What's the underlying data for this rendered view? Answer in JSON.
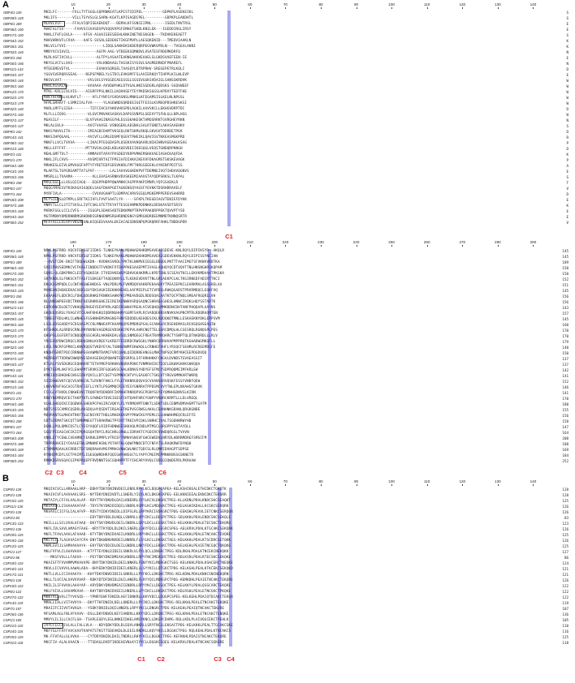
{
  "panels": [
    {
      "letter": "A",
      "blocks": [
        {
          "ruler": [
            "10",
            "20",
            "30",
            "40",
            "50",
            "60",
            "70",
            "80",
            "90",
            "100",
            "110",
            "120",
            "130",
            "140"
          ],
          "end_char": "C",
          "rows": [
            [
              "OBP4/1-145",
              "MKILFC-------FVLLTYTSGGLGQPRNKEATLKPISTCDIPEL---------GDPKPLASEKEIKL",
              "S"
            ],
            [
              "OBP28/1-145",
              "MKLIFS-------VILLTSYVSLGLSARN-KGATLKPISAGDCPEL---------GDPKPLEAKDHTL",
              "S"
            ],
            [
              "OBP5/1-189",
              "MLRVLVIF-----FFALVIQPISEAEKDQT---DEMALKFSSNCEIPNL------ISEDLTNVTRSL",
              "E"
            ],
            [
              "OBP36/1-150",
              "MAKFALFSV-----FAVVSCGVASDSPVSQQVVPGFEMHGTSKDLKNILEK---IGEDDIRGLIRSY",
              "E"
            ],
            [
              "OBP17/1-150",
              "MAKLCFVFLGVLA-----VFSV-ASAAISEESEEHLKNAINETKESKGEN---TKDVKEKEAETT",
              "S"
            ],
            [
              "OBP34/1-152",
              "MAKVHRKVFLCVVA----AAFS-SVSALSEDEKETIKGFMVPLLAESQKENID---TMEDVIAAKLN",
              "K"
            ],
            [
              "OBP26/1-151",
              "MKLVCLFVVI-----------------LIDQLSANVEKSKDERQRPEGVWKVPDLN---TVGEALAKNI",
              "K"
            ],
            [
              "OBP33/1-145",
              "MMRYVCVIAVIL------------AGFM-AAG-VTDEEKSQMHDVLVSATESFRDEMKDRFQ",
              "N"
            ],
            [
              "OBP3/1-156",
              "MLRLVGFIVCVLL-----------ALTPYLASAATEARNGAKKVEAAELSLGKDSVAEFEEN-IE",
              "E"
            ],
            [
              "OBP20/1-156",
              "MKYGLVCFLLVAS-----------VVLKNDAAGLTAGSKISYGSVLSAGMEDRKDFPNAREFL",
              "N"
            ],
            [
              "OBP11/1-143",
              "MTEEEMEVETVL------------EVAKVSQRGELTAASQYLDTRPRHV-SREGEPETRLKQLI",
              "D"
            ],
            [
              "OBP23/1-157",
              "YGGVSVERQRSSEAG----RGPSFMDELYLGTDCLEVKGMFFSLAVIERKQYTIHPPLKILWLEVP",
              "E"
            ],
            [
              "OBP29/1-145",
              "MKSVLVAT------------VVLSVLSYVGGDIAEGSSGLSSSEVGGKSVDAIGLSANSSKRDVK",
              "W"
            ],
            [
              "OBP35/1-160",
              "MARLASSALAV---------VAVAAA-AVVDWYHKLDTVGALHNISGDGRLAQDSKS-SGQVWEEF",
              "W"
            ],
            [
              "OBP12/1-170",
              "MTKL-KALLLVLVIS----AIGRFPPSLNKILLKQVHSEYTEYPKDSKSGGSLKPDVYTEDTFHE",
              "W"
            ],
            [
              "OBP22/1-170",
              "MAKYHFNKSLVLNVFLT-----VFLFYNFGYGVDASNSLMNKGLKFEGAMSISLKELNLNPGSL",
              "W"
            ],
            [
              "OBP31/1-179",
              "MFMLGMARFT-LSMRIIALFVA-----YLAGEWNDSQRDEEIGETFEIGLKSMEQPDSHKESKSI",
              "W"
            ],
            [
              "OBP32/1-140",
              "MARLLMFFLSIGA--------TIFCCHCGYAKKVHVSPDLAGKILAAVSKCLLEKHGVDRPTDC",
              "D"
            ],
            [
              "OBP27/1-150",
              "MLFLLLIQVG----------VLGVCPNVAKSASKVLDAPGSVNPSLGEEVYTSFHLGLLNPLHSG",
              "W"
            ],
            [
              "OBP37/1-137",
              "MGASILF------------GLVFVAAGINASGYHLEGSSKAKESKTAMQSRRKTGVRGHEYRKN",
              "N"
            ],
            [
              "OBP10/1-137",
              "MKLALGVLA-----------AVCFVAASE-VSNQGEKLAEGNALSALRTGNDTLAKASAAEHKV",
              "S"
            ],
            [
              "OBP9/1-142",
              "MKKSYWVVLITA--------IMIAGDCDAMTVKSEQLRKTGKMLRKQLGKVGVTDDRDETPEK",
              "D"
            ],
            [
              "OBP14/1-141",
              "MKKSIHPQGAAL--------AVCVFLLGMLEDSMFQGEVTPWEIKLQAVIGVTKKEASMGKPRD",
              "R"
            ],
            [
              "OBP38/1-152",
              "MKKFLLVCLTVVVA------LIKACPFEGGDASPLQSEKVAVHQAARLNIHIHNVAGEAHLKSAG",
              "P"
            ],
            [
              "OBP21/1-146",
              "MKLLGFFFVT---------MTTVVGVLQAELKDLKQEVDEIIKEGQGLVEQSTGNDQRPKNGH",
              "D"
            ],
            [
              "OBP2/1-141",
              "MEHLGMFTVLT---------AMMAVVTAPAYPVSDEDYKRPVMKEMSKKVAEIASHCKAQFDA",
              "K"
            ],
            [
              "OBP1/1-170",
              "MKKLIFLCAVS---------AVGMIVRTAITPPEIAFDIAKAIKEVVFDKAGMSTSKSKEVAGK",
              "P"
            ],
            [
              "OBP16/1-180",
              "MRHKESLEIVLGMVAGGFAPTYFYRETEDFGDSVKHDLFMFTHRGSEEEKLAYKENFPDITSS",
              "A"
            ],
            [
              "OBP13/1-155",
              "MLARTSLTGPGRGAMTTATLPVF-------LALIAVAVGGKDKPVFTDEMNEIVQTIHDAVQGNVS",
              "E"
            ],
            [
              "OBP15/1-156",
              "MMSRLLLTVAAMA---------VLLGVASASRNKVDVSKEEMIAAVGTAYQDPSRKSLTLKPAL",
              "S"
            ],
            [
              "OBP8/1-158",
              "MVGLGGLLLLVGLQIIAGQ---EQGPPHDPPQWAMHKCAGPPPAKPIMNPLYQFGSAEKLR",
              "T"
            ],
            [
              "OBP6/1-147",
              "MQQGYMAESVTKSKAGAIGQQELSAGFDHAPGETAGKENSQYAGSFYEVKKTDSRHDRAVELF",
              "V"
            ],
            [
              "OBP7/1-164",
              "MYRFIVLA--------------CVVAVGAHPTLGDMPACARVSGSQLMGKEMPPEREVSAHRRD",
              "D"
            ],
            [
              "OBP18/1-208",
              "MCYSILRSLDTMPLLSRFTKIIVFLFVVFSAATLYV-----SFKPLTKEGDIAGVTENIEFDYKK",
              "E"
            ],
            [
              "OBP37/1-188",
              "MNMYTLLCLSTITSVSLLIVTCSKLSTETTKYATTESGSVNMKPDDNKKLDDSKAVSDTSRIV",
              "K"
            ],
            [
              "OBP19/1-169",
              "MVRKFGGLLCCLCVFG----ISGGPLSDAKSADTEDKKMKPTRPVPPAKQRPPEKTQVVPTYSD",
              "E"
            ],
            [
              "OBP24/1-184",
              "MGTRMDNYDMDRNNRMGRHDNDSSRNHDNMSRGHRDNDSNGYGMRGKDRDEEMNMDTKNNQSRTR",
              "E"
            ],
            [
              "OBP30/1-252",
              "MFATVILLALVPFVKGAESNLKIQGEEVAAALEKIACAESDNSNPQPGRQRRFAHKLTNDDGPDR",
              "V"
            ]
          ],
          "labels": [
            {
              "text": "C1"
            }
          ]
        },
        {
          "ruler": [
            "160",
            "170",
            "180",
            "190",
            "200",
            "210",
            "220",
            "230",
            "240",
            "250",
            "260",
            "270",
            "280",
            "290"
          ],
          "end_char": "",
          "rows": [
            [
              "OBP4/1-145",
              "NPKLPGFRRD-VQCVFEKSGFIIDKS-TLNKEYKANLMQHWAEKHKDMSAVEAIGDEVE-KNLRQYLDIPIKSYD--AKQLR",
              "145"
            ],
            [
              "OBP28/1-145",
              "NPKLPGFRRD-VNCVFEKSGFIIDKS-TLNKEYKANLMQHWAEKHKDMSAVEAIGDEVEKKNLRQYLDIPISSYNCIAN",
              "145"
            ],
            [
              "OBP5/1-189",
              "--AVSTCDK-DKIFTDQGWLKDN--KVDKKSVKDLYPKTKLNKMVEIEGSLDDQDLPNTTTAACIMGTSFVKNVVRDTKA",
              "189"
            ],
            [
              "OBP36/1-150",
              "SVDIPHVSEDMKCVCFKAGFINDDGTFVKDKFVTDAPPHESAAEPMTIVASLAQHQYQCDTVQVTTNLHNSNGHRSKQPAM",
              "150"
            ],
            [
              "OBP17/1-150",
              "SQNS-QLGDKPRKCLEIFVGQKESK-ITVEDVKEWSPSDHVGKAKRMLLKPDTGNLSCSEAVTKCLLEKVKMDAAATPKGKA",
              "150"
            ],
            [
              "OBP34/1-152",
              "SKTKNDLSLFNKSCVTFAGFISEKGEFTAQEQKNYLLTLKEKEVDVKTTNLGRSAEKPCLKLTKGIRNEDFADIRTTKCI",
              "152"
            ],
            [
              "OBP26/1-151",
              "DKLKGGMPQDLCLCNFVKGWEHKDGS-VNLPDRLMLFVKMDQVVAKKPEKAAEKYTPEAIEPKCLEARKMALASSGRELAA",
              "151"
            ],
            [
              "OBP33/1-145",
              "MVNEANIHGKEEKACAEKSGVYEKSAGKIEEKHKNEAELAAFMIEPLETCVPDSLRHKQGADSTPRVRMDQCLEQKFVQ",
              "145"
            ],
            [
              "OBP3/1-156",
              "EKAAHEFLQDCRCLFDHLQDGRHKEFKNKKSAHKPKCPMEAVDGDLRDDSQACAATKTQCPTNQLSMEAFRGQRILVH",
              "156"
            ],
            [
              "OBP20/1-156",
              "NLLNNGWPEEVDCTRKKFQESRHNSGHEIEIREIKENWHVSRQGAQNCSHRADLGHESLHNWCIRQKLHQYSSTADTK",
              "156"
            ],
            [
              "OBP11/1-143",
              "EDPQRNCDLDETCVKHQAGRHGEYEEVPVRLAQDIRSWHAYREALVCVEQHQLMMKDDNCDHTANFPHQQAPLAAYNS",
              "143"
            ],
            [
              "OBP23/1-157",
              "GKQEEQSRSLYVAGCVTCEAHFKHGKQIQDRNGHHRYGGMFSAPLRCVADQEKNSVNVKVAGPNCMTRLRDQRAQMTEN",
              "157"
            ],
            [
              "OBP29/1-145",
              "TDNEGTRDLHKLCLWNHEGFGSHNHEMSMAGNSFHNYEDDDDLKEHQESCKLRDDQKDTMNLLESKAEKNYDKLERPSVM",
              "145"
            ],
            [
              "OBP35/1-160",
              "LSSLEDSGADDYSCDSAASPCCKLMNHEAPFKAAMQQPGPMDRGPGALSCANALRCRSEHEMASLRCHSQGHSEAQIW",
              "160"
            ],
            [
              "OBP12/1-170",
              "KFSHRDLALRRDSCRNLRMYNVNEVAGDRGEVDSKHCPEPVLAHRCNQTTELSGRCDMQLHLCGESRQLRGNQSPLPES",
              "170"
            ],
            [
              "OBP22/1-170",
              "QHSPSLEGFERTSCNQQQRSSCHGRLAKHEKDALVSQLSNMQEGCFREATRAMRQARCTYSNPTQLDTNADRDLLLRLV",
              "170"
            ],
            [
              "OBP31/1-179",
              "YRCEAQPDWCDRQCLRDHQGNHLKVREEYLKREFFESDRDCRWSGKLYNHRCDRRHVAPMPPRQTKGHADWGMKQFLL",
              "179"
            ],
            [
              "OBP32/1-140",
              "LRSLYNCRFGPRKCLKNVRQQSTVKDYEYALTGNNGRWMFEKWAQLLCRNHEFVHFLYRSQCFSEHMLRCREEMDGFE",
              "140"
            ],
            [
              "OBP27/1-150",
              "KNQHTGRRTPQCCRRNWPSGVAWMNTRAMCFVRCQANLQIDQRREANGSLMWCTNPSQCRMYKHCEEPDGDVQQ",
              "150"
            ],
            [
              "OBP37/1-137",
              "MERREHTTVDRWCNWQRVESDAASEEKQPQWANTEGRSRPGLSFFHRHHKKFCNGVLDVNDSTGVAEASSIT",
              "137"
            ],
            [
              "OBP10/1-137",
              "KTLRLYSVSDGRGCEQHHVRFTETHYMEPSRKKKVNQRAPDNCFVNMRHCDGTIQCLEKWVGHVKSHKQQA",
              "137"
            ],
            [
              "OBP9/1-142",
              "DYKTEEMLAKFVCLEHAPMTSRVKSIRFGQGWSSCHALKRNVGYHDYEFSFMCYSDPRQDMEIMFKRLEW",
              "142"
            ],
            [
              "OBP14/1-141",
              "KMKIVQSDHQHECWSGIDKYQVCLLDTCQGTYGPMNRCHTVYLEAGKFCTSKLVTYRGVGMMKARTWKRQ",
              "141"
            ],
            [
              "OBP38/1-152",
              "SSIDAWEVKFCQCVSARNIVLTLRVNFFHKCLYYLETKKNRGDQVASCVVANSERVQSKFESSYVNDFQEW",
              "152"
            ],
            [
              "OBP21/1-146",
              "LKKVKRVFAGCACGTRAFIEFLLYKTLPSGMMQCRIEYESYGNRRATPPDSMCVVYTWLEPLNVAHSTGKVK",
              "146"
            ],
            [
              "OBP2/1-141",
              "FCCGLVTHVDLCNKWEVVCTRQKFNYDDHDRFIKMAHFRNRQPVGCPGNYSGYEYQMHHGDNVSLKIRN",
              "141"
            ],
            [
              "OBP1/1-170",
              "RRKYNEMRQVCECTAKPTKTLSFWNEATDVEIGESFCHTQVHFHRCYGNPYVRHRCKRMTLLLDLVREQL",
              "170"
            ],
            [
              "OBP16/1-180",
              "VLHLGHEQCKCCQGDWVLSHEKPCPAGIRCVQKYLFLYVRMQVMTGNKTLSDKTSDLCENMVDMVHSMTTGATM",
              "180"
            ],
            [
              "OBP13/1-155",
              "NDTSYESCVMRCQSDRLAKSDQLHYQSDVTIRGAGEFKEPVSCRWSLAKALCDANHNKGRANLQRGKGNDE",
              "155"
            ],
            [
              "OBP15/1-156",
              "MQVRVNTGLMHCHTRKFTSGCNSYKFTHDLGMAEKEKVPYPKWCKGYPEMLCLLHHWHHMEQCRLEFFE",
              "156"
            ],
            [
              "OBP8/1-158",
              "GDTSCKMATSKCQTTGMHMNEGTTSRAKRWGTPFDVTTRKIVPCQKLSNRHCIVALTSGDHNRWYHD",
              "158"
            ],
            [
              "OBP6/1-147",
              "DGNLLPQLQMKCDSTLCYESYAQQFLRIDFHDNWEESKKAQLMCNDLMTMSCLQRGPPYGQTAYDLL",
              "147"
            ],
            [
              "OBP7/1-164",
              "SGEFPIEAGCHCIKIIPQRGSQATNYCLRGCHRLQRWLLIDRVKTCYGDCRCVVWDQRGSLTVVVN",
              "164"
            ],
            [
              "OBP18/1-208",
              "VNKLETYCEWLCVEAMNCFEARHLDPMPLVTRCEFTNMHVSNSVFGHCEWEDVLNRYDLHDRRMDREFSMSCFM",
              "208"
            ],
            [
              "OBP37/1-188",
              "TRPRRDHCEIYCKASETWLGMNHNFHSNLYRTARTHLGQWFMNDCDTCFNFATSLRAQKRWFDYNQH",
              "188"
            ],
            [
              "OBP19/1-169",
              "ETNMRMQAALKCRRDCTDFSNQRAHAVMSFMMAGVNWCWLNKCTQDCSLRLQMMIDVHGPTSDPSE",
              "169"
            ],
            [
              "OBP24/1-184",
              "RYNHCMCDYLSCTPAIMTLIGEGQWRDHRFQQIGWYHNSGCYLYAPFCMGIMCPMNKKNSSGSKNETR",
              "184"
            ],
            [
              "OBP30/1-252",
              "RMNKDSRVGQACGIPKPAQEPFRVDNNTSGCGQHNPPTFYIHCARYVVQLCVDGQIQWDEPDLPKRAAW",
              "252"
            ]
          ],
          "labels": [
            {
              "text": "C2"
            },
            {
              "text": "C3"
            },
            {
              "text": "C4"
            },
            {
              "text": "C5"
            },
            {
              "text": "C6"
            }
          ]
        }
      ]
    },
    {
      "letter": "B",
      "blocks": [
        {
          "ruler": [
            "10",
            "20",
            "30",
            "40",
            "50",
            "60",
            "70",
            "80",
            "90",
            "100",
            "110",
            "120",
            "130",
            "140"
          ],
          "end_char": "",
          "rows": [
            [
              "CSP9/1-128",
              "MKQIVCVCLLAMAAALARP--DDHYTDKYDNINVDEILENRLRPYLKCLDQGPCAPEA-KELKSHIKEALETHCDKCTGKQTK",
              "128"
            ],
            [
              "CSP2/1-128",
              "MKAIVCVFLAVVAAVLSRS--NYTDKYDNIDVDTLLSNERLYIGYLKCLDKGKCKPEG-EELKKNIEEALEKNCDKCTEKQRR",
              "128"
            ],
            [
              "CSP15/1-125",
              "MKTAIYLCFFALVALALAP--RDYTTKYDNVDLDAILKNERRLSYYLKCVLDKGRCTPEG-KLLKDNLPDALKNDCSKCSEAQKT",
              "125"
            ],
            [
              "CSP11/1-126",
              "MKVAVLCLISVAAAVAFAP--TDYSTKYDNIDIDQILSNDRLVGMYLKCLMDQGKCTPEG-KELKGHIKDALLKCSKCSEKQRK",
              "126"
            ],
            [
              "CSP3/1-126",
              "MKVAVLCICFSLIALAFVP--RDSTYIDKYDNIDLLDIPSLRLLRPYKRCIVDKGRCTPDG-EEKQHLPEAVLIETCNKCSERQQR",
              "126"
            ],
            [
              "CSP2/1-83",
              "---------------------EDYTDRYDDLDLNQLLSNRRLLVPYIKCLLDEGPCTPEG-SDLKKHLPDALENDCSKCSEKQLE",
              "83"
            ],
            [
              "CSP13/1-123",
              "MKILLLLSCLVVALAFAAQ--DKYTSKYDNVDLDEILSNDRLLGRYLDCLLEEGKCTAEG-KELKKHLPDALETECSKCTEKQRQ",
              "123"
            ],
            [
              "CSP5/1-126",
              "MKFLIVLSAVLAMASYFAAE--KRYTTKYDDLDLDKILSNERLLGKYFDCLLEEGRCSPEG-AELKRVLPDALKTGCAKCSEKQRK",
              "126"
            ],
            [
              "CSP20/1-125",
              "MKFLTFAVLAAVLAFAAAD--KTYTDKYDNIDVAEILKNDRLLRPYVKCLLEGGKCTPEG-KELKKHLPDALETNCAKCTEVQRE",
              "125"
            ],
            [
              "CSP19/1-126",
              "MKLYLILTLAGVVAIAYCPA-DNYTDKWDNVNVDEILNNRRLFLSYLKCLLDKGKCTAEG-KDLKKHLPDALKTSCDRCSETQKK",
              "126"
            ],
            [
              "CSP12/1-125",
              "MKMLGVIILSAMVAVAAYA--EKYTEKYDDIDLDEILGNDRLLNKYFDCLLEKGKCTPDG-KELKEHLPEAIETNCGQCTQKQKG",
              "125"
            ],
            [
              "CSP1/1-127",
              "MKLFVFVLCLAAAVAAA---KTYTTEYDNLDIDEILSNKRLVLPYLQCLLDNGKCTPEG-KDLRKHLPDALKTNCEKCNEKQKK",
              "127"
            ],
            [
              "CSP4/1-86",
              "---MKSFVVLLLFAAVA----PEYTDKYDNIDMEAVLKNDRLLRPYFNCIMEKGRCTPEG-RDLKSRLPDALRTECSKCSEKQKE",
              "86"
            ],
            [
              "CSP18/1-124",
              "MKAISFTFVVAMMVMVAVAPE-DNYTDKYDNIDLDEILNNKRLFSNYYKCLMDRGKCTSEG-KELKKHLPDALKSHCERCTNEQKE",
              "124"
            ],
            [
              "CSP16/1-121",
              "MKVLLICVAVVLAAWALADA--KHYEDKYDNIDIDEILKNERLLLSYYKCLLDTGKCTPDG-KELKGHLPEALKTKCEKCSEKQKD",
              "121"
            ],
            [
              "CSP17/1-121",
              "MKTLLVLLCCIAVAAYA---KHYTDKYDNVDIDEILGNKRLLLPYFKCLLDKGKCTPDG-KELKDNLPDALKNHCSNCNEKQRN",
              "121"
            ],
            [
              "CSP6/1-126",
              "MKLLTLVCCALVAVVVVAP--RDKYDTDFDNIDLDGILHNERLFLRYYQCLMDKGPCTPDG-KEMKDHLPEAIETNCAKCTEKQRE",
              "126"
            ],
            [
              "CSP10/1-122",
              "MKILILIFAVAVLAAAYAP--ARYDDKYDNVDMEAIIENDRLLRPYYKCLLDEGQCTPEG-KELKKYLPDALQSGCARCTEKQRE",
              "122"
            ],
            [
              "CSP8/1-122",
              "MKLFVIVLLSAVAMVAVA---KHYTDRYDNIDVEEILHNERLLLPYIKCLLDKGKCTPDG-KDLRSHLPEALETNCGKCTPKQKE",
              "122"
            ],
            [
              "CSP27/1-122",
              "MKWTVLAVVLCTYVVSQS---YPNRYEWFFDNIDLAEFIDNKRLLKKYVDCLLDQGPCSPEG-KELKEHLPDAIQTDCAKCTEKQR",
              "122"
            ],
            [
              "CSP14/1-119",
              "MMALLIALLVITAVVYA---DKYTTKFDNIDLDELLQNERLLLPYIKCLLDKGKCTPDG-RELKKHLPEALETNCAKCTEKQKE",
              "119"
            ],
            [
              "CSP7/1-107",
              "MRAIIFCIIVVTAVAGA---YSDKYDNIDLDQILNNERLLRPYYKCLLDNGKCTPDG-KELKEHLPEAIQTNCAKCTEKQRE",
              "107"
            ],
            [
              "CSP26/1-136",
              "MFSAMLAGLFNLVFVAVV--DSLLDKYDNVDLKEYIANDRLLKKYYDCLLDRGKCTPEG-KELKRHLPEALETNCAKCTENQKE",
              "136"
            ],
            [
              "CSP1/1-105",
              "MMVYLILILLCACFLGH--TSAPLEGDYLEGLHNKEIDHELAMGYKNCLLDKGPCDAMG-RQLLKDLPLAIVQGCEKCTPEHLK",
              "105"
            ],
            [
              "CSP21/1-110",
              "IVYLFLLCAIVLALLFALLVLA---KDYQDKYDDLDLEQVLANKRLLSRYFNCLLEKGACTPDG-KELKKKLPEALTTGCAKCSKE",
              "110"
            ],
            [
              "CSP24/1-116",
              "MKFYSLFFAFFAVCAAVTVAPATSTKSTTSDEVKDLDLEEILRNDRLLKQYYKCLLDGGKCTPEG-RQLKEHLPDALKTNCAKCS",
              "116"
            ],
            [
              "CSP25/1-125",
              "MK-FFVFALLGLVVAA----CYTDRYDNIDLDAILTNDRLLRHYFKCLLDGGKCTPEG-KEFKKHLPDAISTNCAKCTEKQRE",
              "125"
            ],
            [
              "CSP31/1-118",
              "MKCFIV-ALALVAACN----TTSDAGLDVDTIKDEAEVNLKYIYYCLLDGGKCSQEG-KELKRVLPDALKTNCAKCSEKQRE",
              "118"
            ]
          ],
          "labels": [
            {
              "text": "C1"
            },
            {
              "text": "C2"
            },
            {
              "text": "C3"
            },
            {
              "text": "C4"
            }
          ]
        }
      ]
    }
  ]
}
